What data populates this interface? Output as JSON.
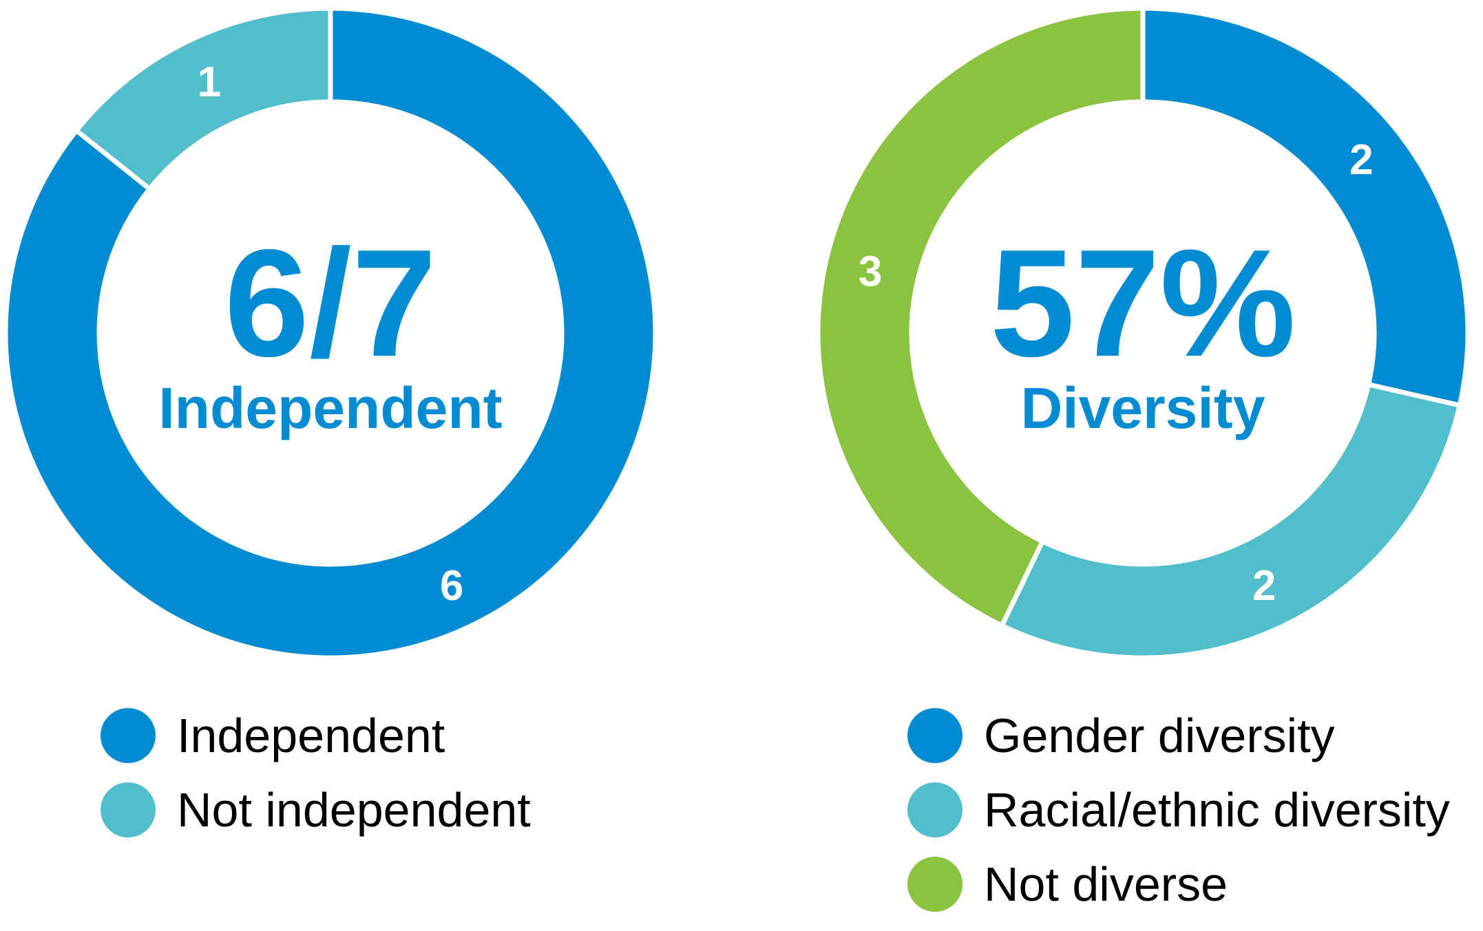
{
  "chart_data": [
    {
      "type": "pie",
      "title": "",
      "center_value": "6/7",
      "center_label": "Independent",
      "slices": [
        {
          "label": "Independent",
          "value": 6,
          "data_label": "6",
          "color": "#008bd2"
        },
        {
          "label": "Not independent",
          "value": 1,
          "data_label": "1",
          "color": "#52bdcb"
        }
      ],
      "legend": {
        "placement": "bottom",
        "items": [
          {
            "label": "Independent",
            "color": "#008bd2"
          },
          {
            "label": "Not independent",
            "color": "#52bdcb"
          }
        ]
      }
    },
    {
      "type": "pie",
      "title": "",
      "center_value": "57%",
      "center_label": "Diversity",
      "slices": [
        {
          "label": "Gender diversity",
          "value": 2,
          "data_label": "2",
          "color": "#008bd2"
        },
        {
          "label": "Racial/ethnic diversity",
          "value": 2,
          "data_label": "2",
          "color": "#52bdcb"
        },
        {
          "label": "Not diverse",
          "value": 3,
          "data_label": "3",
          "color": "#8bc240"
        }
      ],
      "legend": {
        "placement": "bottom",
        "items": [
          {
            "label": "Gender diversity",
            "color": "#008bd2"
          },
          {
            "label": "Racial/ethnic diversity",
            "color": "#52bdcb"
          },
          {
            "label": "Not diverse",
            "color": "#8bc240"
          }
        ]
      }
    }
  ],
  "colors": {
    "center_text": "#008bd2",
    "slice_label": "#ffffff",
    "legend_text": "#000000",
    "separator": "#ffffff"
  }
}
